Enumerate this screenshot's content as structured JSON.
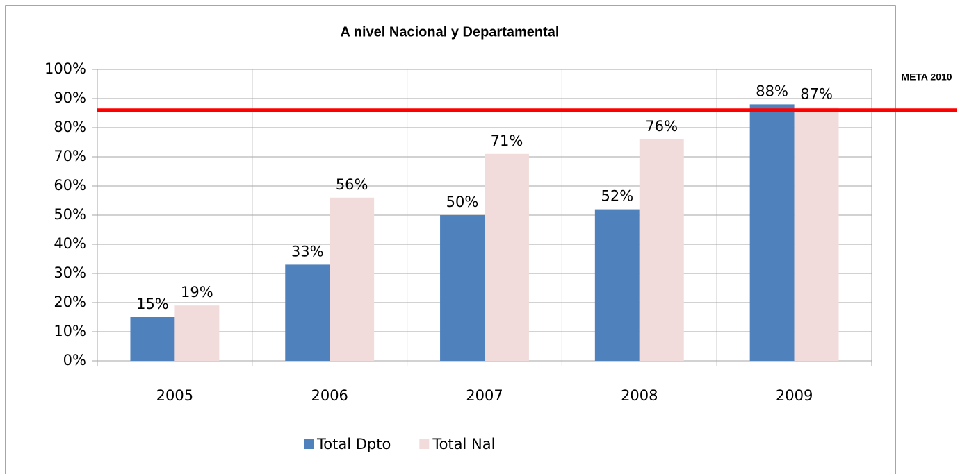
{
  "chart_data": {
    "type": "bar",
    "title": "A nivel Nacional y Departamental",
    "categories": [
      "2005",
      "2006",
      "2007",
      "2008",
      "2009"
    ],
    "series": [
      {
        "name": "Total Dpto",
        "color": "#4f81bd",
        "values": [
          15,
          33,
          50,
          52,
          88
        ],
        "value_labels": [
          "15%",
          "33%",
          "50%",
          "52%",
          "88%"
        ]
      },
      {
        "name": "Total Nal",
        "color": "#f2dcdb",
        "values": [
          19,
          56,
          71,
          76,
          87
        ],
        "value_labels": [
          "19%",
          "56%",
          "71%",
          "76%",
          "87%"
        ]
      }
    ],
    "ylim": [
      0,
      100
    ],
    "yticks": [
      {
        "value": 0,
        "label": "0%"
      },
      {
        "value": 10,
        "label": "10%"
      },
      {
        "value": 20,
        "label": "20%"
      },
      {
        "value": 30,
        "label": "30%"
      },
      {
        "value": 40,
        "label": "40%"
      },
      {
        "value": 50,
        "label": "50%"
      },
      {
        "value": 60,
        "label": "60%"
      },
      {
        "value": 70,
        "label": "70%"
      },
      {
        "value": 80,
        "label": "80%"
      },
      {
        "value": 90,
        "label": "90%"
      },
      {
        "value": 100,
        "label": "100%"
      }
    ],
    "grid": true,
    "legend": "bottom",
    "target": {
      "label": "META 2010",
      "value": 86,
      "color": "#ff0000"
    }
  }
}
